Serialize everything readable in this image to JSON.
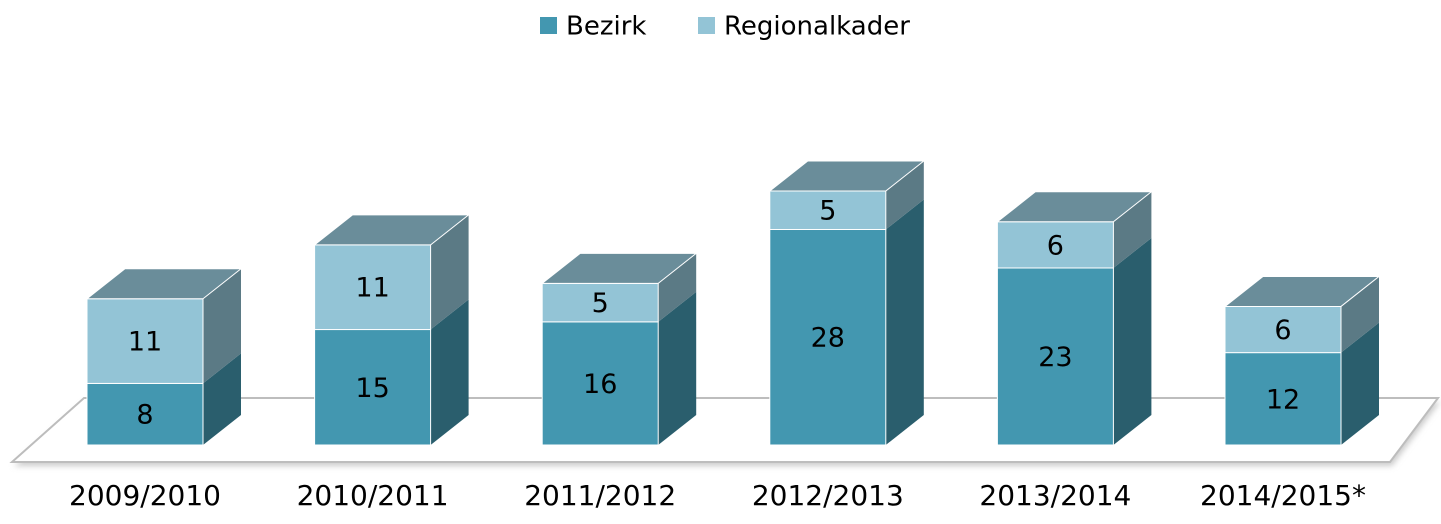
{
  "chart_data": {
    "type": "bar",
    "stacked": true,
    "legend": "top",
    "categories": [
      "2009/2010",
      "2010/2011",
      "2011/2012",
      "2012/2013",
      "2013/2014",
      "2014/2015*"
    ],
    "series": [
      {
        "name": "Bezirk",
        "color": "#4397b0",
        "values": [
          8,
          15,
          16,
          28,
          23,
          12
        ]
      },
      {
        "name": "Regionalkader",
        "color": "#93c4d6",
        "values": [
          11,
          11,
          5,
          5,
          6,
          6
        ]
      }
    ]
  }
}
